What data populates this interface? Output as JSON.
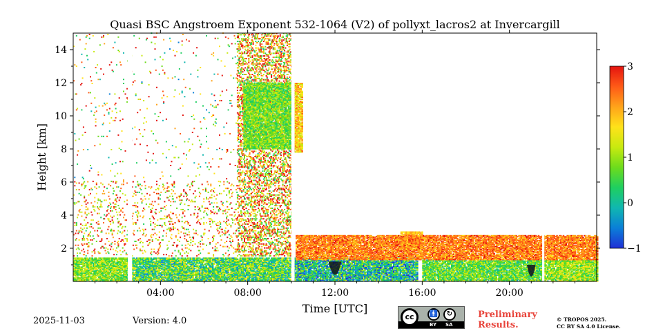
{
  "colors": {
    "background": "#ffffff",
    "axis": "#000000",
    "preliminary": "#e8433a",
    "badge_gray": "#aab2ab",
    "colorscale": [
      "#1f2fd6",
      "#0a7fd8",
      "#10b7b0",
      "#1fcf60",
      "#6ddc1c",
      "#c8ea10",
      "#ffe21a",
      "#ffa31a",
      "#ff5a17",
      "#e4140f"
    ]
  },
  "chart_data": {
    "type": "heatmap",
    "title": "Quasi BSC Angstroem Exponent 532-1064 (V2) of pollyxt_lacros2 at Invercargill",
    "xlabel": "Time [UTC]",
    "ylabel": "Height [km]",
    "xlim_hours": [
      0,
      24
    ],
    "ylim_km": [
      0,
      15
    ],
    "x_ticks": [
      {
        "hour": 4,
        "label": "04:00"
      },
      {
        "hour": 8,
        "label": "08:00"
      },
      {
        "hour": 12,
        "label": "12:00"
      },
      {
        "hour": 16,
        "label": "16:00"
      },
      {
        "hour": 20,
        "label": "20:00"
      }
    ],
    "y_ticks": [
      {
        "value": 2,
        "label": "2"
      },
      {
        "value": 4,
        "label": "4"
      },
      {
        "value": 6,
        "label": "6"
      },
      {
        "value": 8,
        "label": "8"
      },
      {
        "value": 10,
        "label": "10"
      },
      {
        "value": 12,
        "label": "12"
      },
      {
        "value": 14,
        "label": "14"
      }
    ],
    "colorbar": {
      "min": -1,
      "max": 3,
      "ticks": [
        {
          "value": 3,
          "label": "3"
        },
        {
          "value": 2,
          "label": "2"
        },
        {
          "value": 1,
          "label": "1"
        },
        {
          "value": 0,
          "label": "0"
        },
        {
          "value": -1,
          "label": "−1"
        }
      ]
    },
    "regions": [
      {
        "name": "boundary-layer-morning",
        "t0": 0.0,
        "t1": 2.5,
        "h0": 0.0,
        "h1": 1.4,
        "value": 0.9,
        "spread": 0.6
      },
      {
        "name": "boundary-layer-early",
        "t0": 2.7,
        "t1": 10.0,
        "h0": 0.0,
        "h1": 1.4,
        "value": 0.6,
        "spread": 0.9
      },
      {
        "name": "boundary-layer-noon",
        "t0": 10.1,
        "t1": 15.8,
        "h0": 0.0,
        "h1": 1.4,
        "value": 0.2,
        "spread": 1.0
      },
      {
        "name": "boundary-layer-afternoon",
        "t0": 16.0,
        "t1": 21.5,
        "h0": 0.0,
        "h1": 1.3,
        "value": 0.7,
        "spread": 0.6
      },
      {
        "name": "boundary-layer-evening",
        "t0": 21.6,
        "t1": 24.0,
        "h0": 0.0,
        "h1": 1.3,
        "value": 1.0,
        "spread": 0.6
      },
      {
        "name": "cirrus-cloud-morning",
        "t0": 7.8,
        "t1": 10.0,
        "h0": 8.0,
        "h1": 12.0,
        "value": 0.8,
        "spread": 0.5
      },
      {
        "name": "cirrus-cloud-late",
        "t0": 10.1,
        "t1": 10.5,
        "h0": 7.8,
        "h1": 12.0,
        "value": 1.7,
        "spread": 0.6
      },
      {
        "name": "aerosol-plume-afternoon",
        "t0": 15.0,
        "t1": 16.0,
        "h0": 2.0,
        "h1": 3.0,
        "value": 1.8,
        "spread": 0.4
      },
      {
        "name": "aerosol-layer-descending",
        "t0": 10.2,
        "t1": 24.0,
        "h0": 1.3,
        "h1": 2.8,
        "value": 2.2,
        "spread": 0.5
      }
    ],
    "noise_fields": [
      {
        "t0": 0.0,
        "t1": 7.5,
        "h0": 1.5,
        "h1": 6.0,
        "density": 0.1,
        "value": 1.8,
        "spread": 1.4
      },
      {
        "t0": 7.5,
        "t1": 10.0,
        "h0": 1.5,
        "h1": 15.0,
        "density": 0.35,
        "value": 1.8,
        "spread": 1.6
      },
      {
        "t0": 0.0,
        "t1": 10.0,
        "h0": 6.0,
        "h1": 15.0,
        "density": 0.02,
        "value": 1.5,
        "spread": 1.8
      }
    ],
    "data_gaps_hours": [
      [
        2.5,
        2.7
      ],
      [
        10.0,
        10.15
      ],
      [
        21.5,
        21.6
      ]
    ],
    "low_value_pockets": [
      {
        "t": 12.0,
        "h_top": 1.2,
        "width_h": 0.6,
        "value": -1.0
      },
      {
        "t": 21.0,
        "h_top": 1.0,
        "width_h": 0.4,
        "value": -1.0
      }
    ]
  },
  "footer": {
    "date": "2025-11-03",
    "version": "Version: 4.0",
    "preliminary_line1": "Preliminary",
    "preliminary_line2": "Results.",
    "copyright_line1": "© TROPOS 2025.",
    "copyright_line2": "CC BY SA 4.0 License.",
    "badge_cc": "cc",
    "badge_by_label": "BY",
    "badge_sa_label": "SA"
  }
}
